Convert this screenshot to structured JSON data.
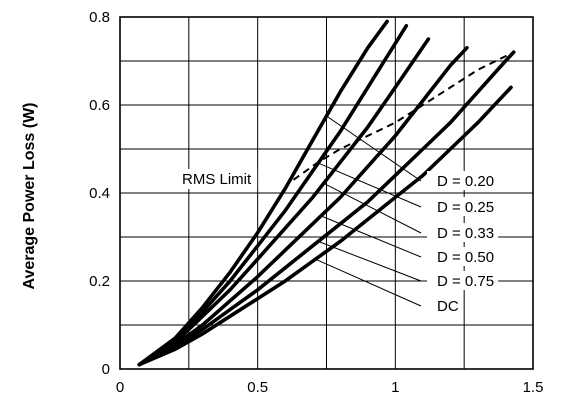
{
  "chart_data": {
    "type": "line",
    "title": "",
    "xlabel": "",
    "ylabel": "Average Power Loss (W)",
    "xlim": [
      0,
      1.5
    ],
    "ylim": [
      0,
      0.8
    ],
    "grid": true,
    "x_ticks": [
      {
        "value": 0,
        "label": "0"
      },
      {
        "value": 0.5,
        "label": "0.5"
      },
      {
        "value": 1,
        "label": "1"
      },
      {
        "value": 1.5,
        "label": "1.5"
      }
    ],
    "y_ticks": [
      {
        "value": 0,
        "label": "0"
      },
      {
        "value": 0.2,
        "label": "0.2"
      },
      {
        "value": 0.4,
        "label": "0.4"
      },
      {
        "value": 0.6,
        "label": "0.6"
      },
      {
        "value": 0.8,
        "label": "0.8"
      }
    ],
    "series": [
      {
        "name": "D = 0.20",
        "x": [
          0.07,
          0.2,
          0.3,
          0.4,
          0.5,
          0.6,
          0.7,
          0.8,
          0.9,
          0.97
        ],
        "y": [
          0.01,
          0.07,
          0.14,
          0.22,
          0.31,
          0.41,
          0.52,
          0.63,
          0.73,
          0.79
        ]
      },
      {
        "name": "D = 0.25",
        "x": [
          0.07,
          0.2,
          0.3,
          0.4,
          0.5,
          0.6,
          0.7,
          0.8,
          0.9,
          1.0,
          1.04
        ],
        "y": [
          0.01,
          0.065,
          0.13,
          0.2,
          0.28,
          0.36,
          0.45,
          0.54,
          0.64,
          0.74,
          0.78
        ]
      },
      {
        "name": "D = 0.33",
        "x": [
          0.07,
          0.2,
          0.3,
          0.4,
          0.5,
          0.6,
          0.7,
          0.8,
          0.9,
          1.0,
          1.12
        ],
        "y": [
          0.01,
          0.06,
          0.12,
          0.18,
          0.25,
          0.32,
          0.39,
          0.47,
          0.55,
          0.64,
          0.75
        ]
      },
      {
        "name": "D = 0.50",
        "x": [
          0.07,
          0.2,
          0.3,
          0.4,
          0.5,
          0.6,
          0.7,
          0.8,
          0.9,
          1.0,
          1.1,
          1.2,
          1.26
        ],
        "y": [
          0.01,
          0.055,
          0.1,
          0.155,
          0.21,
          0.27,
          0.33,
          0.39,
          0.46,
          0.53,
          0.61,
          0.69,
          0.73
        ]
      },
      {
        "name": "D = 0.75",
        "x": [
          0.07,
          0.2,
          0.3,
          0.4,
          0.5,
          0.6,
          0.7,
          0.8,
          0.9,
          1.0,
          1.1,
          1.2,
          1.3,
          1.4,
          1.43
        ],
        "y": [
          0.01,
          0.05,
          0.09,
          0.135,
          0.18,
          0.23,
          0.28,
          0.33,
          0.38,
          0.44,
          0.5,
          0.56,
          0.63,
          0.7,
          0.72
        ]
      },
      {
        "name": "DC",
        "x": [
          0.07,
          0.2,
          0.3,
          0.4,
          0.5,
          0.6,
          0.7,
          0.8,
          0.9,
          1.0,
          1.1,
          1.2,
          1.3,
          1.42
        ],
        "y": [
          0.01,
          0.045,
          0.08,
          0.12,
          0.16,
          0.2,
          0.245,
          0.29,
          0.34,
          0.39,
          0.44,
          0.5,
          0.56,
          0.64
        ]
      }
    ],
    "rms_limit": {
      "label": "RMS Limit",
      "x": [
        0.63,
        0.72,
        0.8,
        0.9,
        1.0,
        1.1,
        1.2,
        1.3,
        1.43
      ],
      "y": [
        0.43,
        0.47,
        0.5,
        0.53,
        0.56,
        0.6,
        0.64,
        0.68,
        0.72
      ]
    }
  }
}
